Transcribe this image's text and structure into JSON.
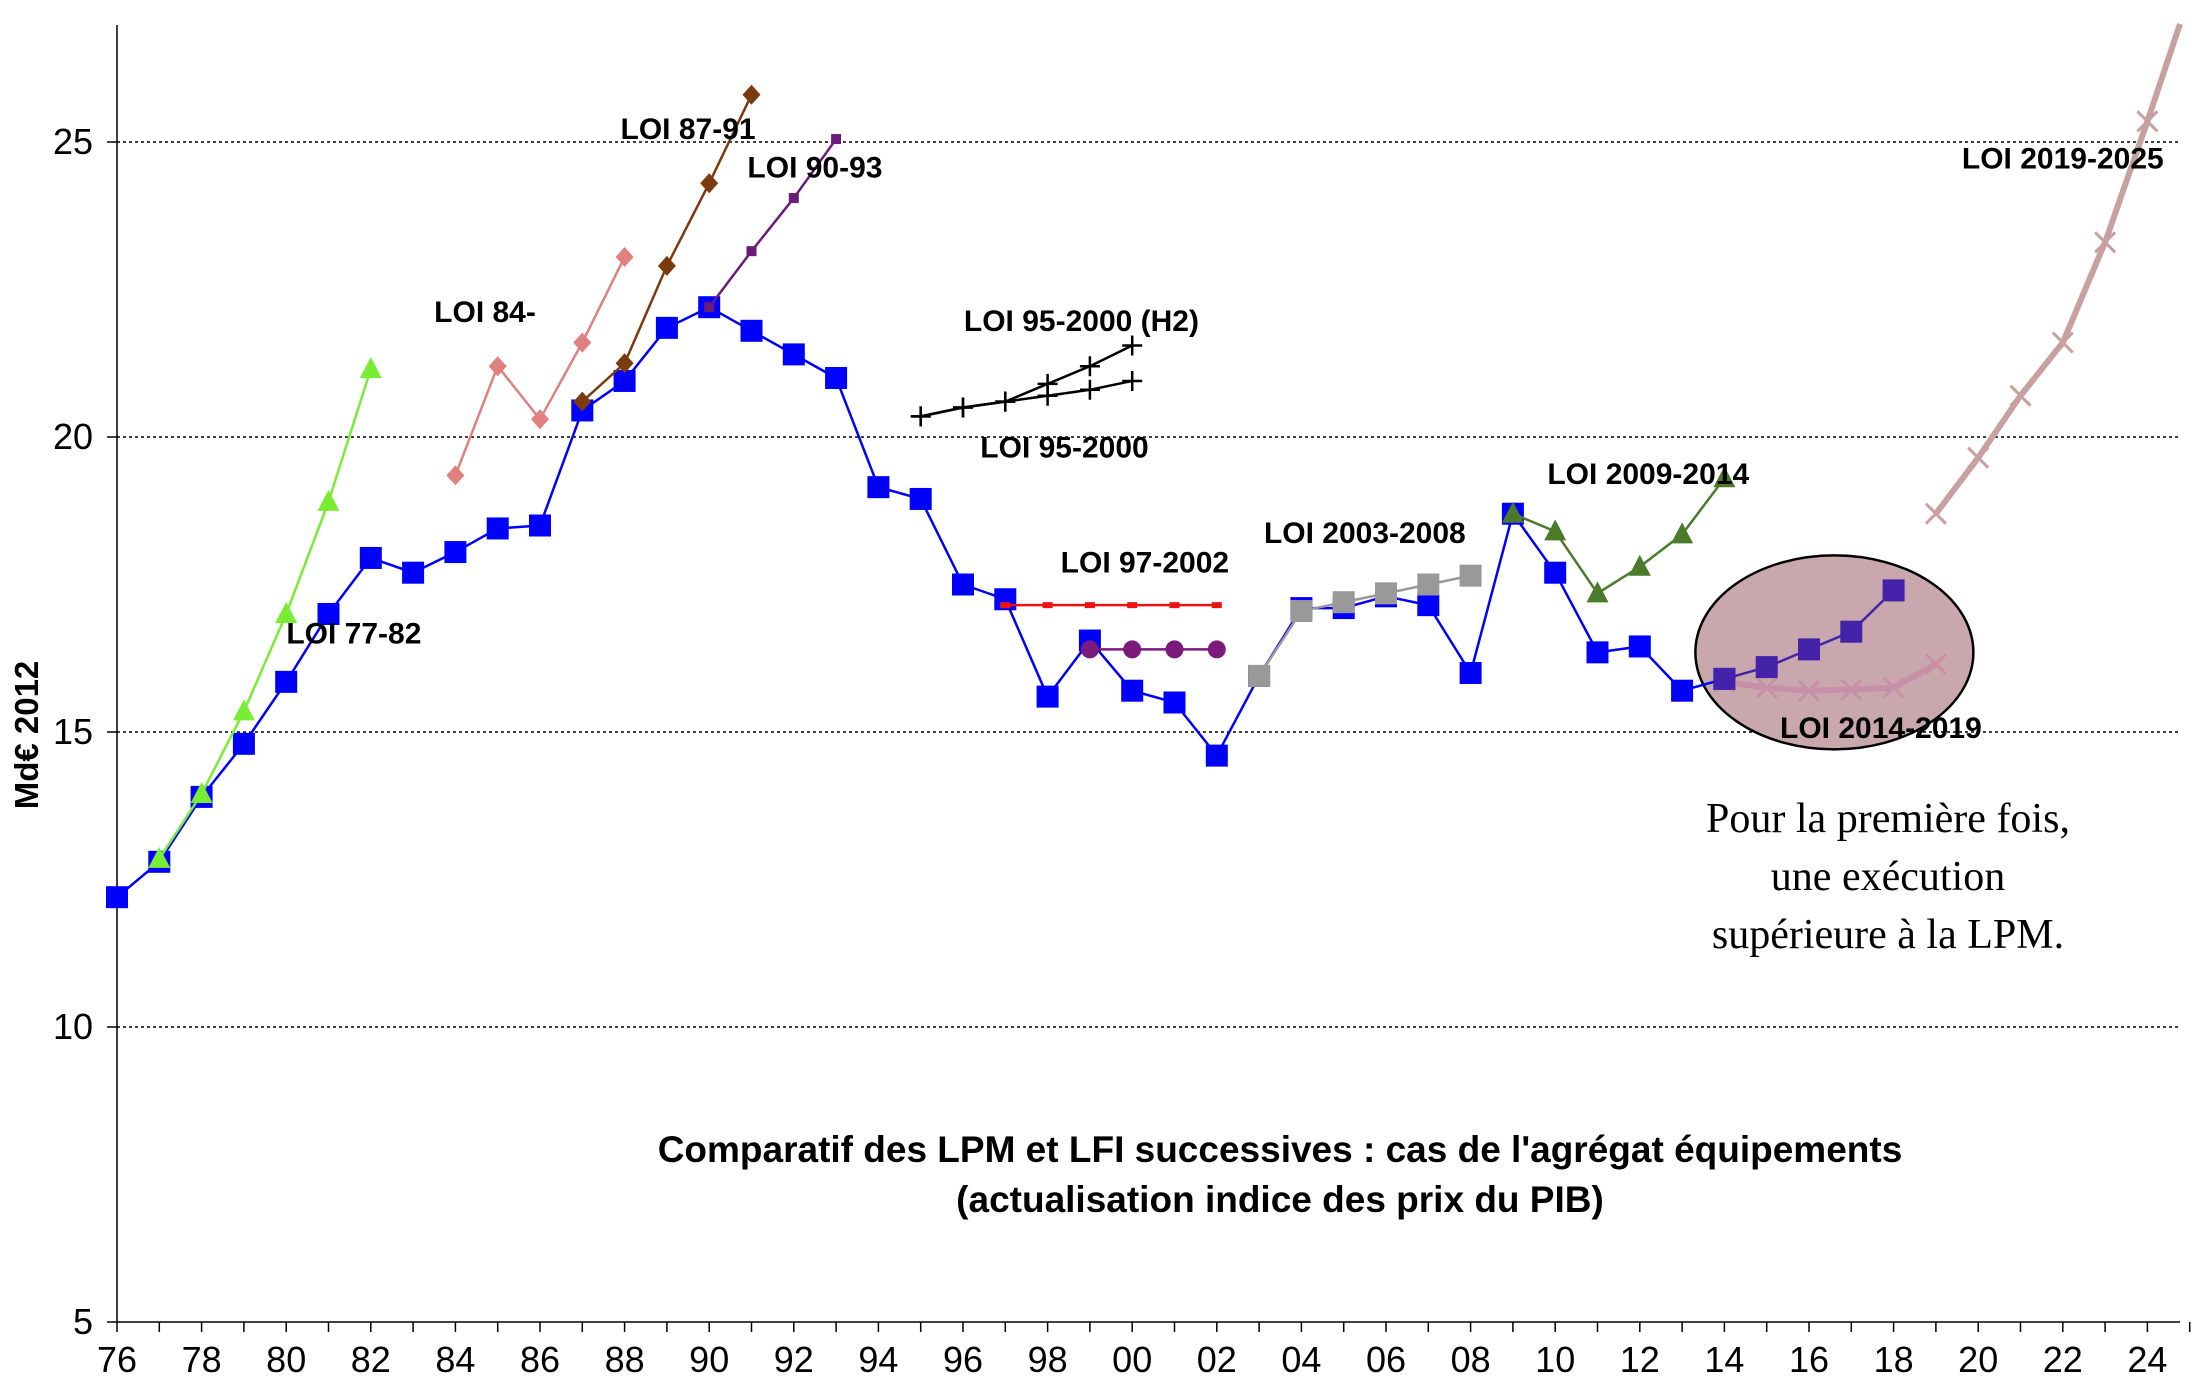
{
  "chart_data": {
    "type": "line",
    "title": "Comparatif des LPM et LFI successives : cas de l'agrégat équipements",
    "subtitle": "(actualisation indice des prix du PIB)",
    "ylabel": "Md€ 2012",
    "xlabel": "",
    "ylim": [
      5,
      27
    ],
    "xlim": [
      1976,
      2025
    ],
    "y_ticks": [
      5,
      10,
      15,
      20,
      25
    ],
    "x_tick_labels": [
      "76",
      "78",
      "80",
      "82",
      "84",
      "86",
      "88",
      "90",
      "92",
      "94",
      "96",
      "98",
      "00",
      "02",
      "04",
      "06",
      "08",
      "10",
      "12",
      "14",
      "16",
      "18",
      "20",
      "22",
      "24"
    ],
    "grid": "horizontal dotted",
    "annotation": {
      "lines": [
        "Pour la première fois,",
        "une exécution",
        "supérieure à la LPM."
      ]
    },
    "series": [
      {
        "name": "",
        "color": "#0000ff",
        "marker": "square",
        "points": [
          [
            1976,
            12.2
          ],
          [
            1977,
            12.8
          ],
          [
            1978,
            13.9
          ],
          [
            1979,
            14.8
          ],
          [
            1980,
            15.85
          ],
          [
            1981,
            17.0
          ],
          [
            1982,
            17.95
          ],
          [
            1983,
            17.7
          ],
          [
            1984,
            18.05
          ],
          [
            1985,
            18.45
          ],
          [
            1986,
            18.5
          ],
          [
            1987,
            20.45
          ],
          [
            1988,
            20.95
          ],
          [
            1989,
            21.85
          ],
          [
            1990,
            22.2
          ],
          [
            1991,
            21.8
          ],
          [
            1992,
            21.4
          ],
          [
            1993,
            21.0
          ],
          [
            1994,
            19.15
          ],
          [
            1995,
            18.95
          ],
          [
            1996,
            17.5
          ],
          [
            1997,
            17.25
          ],
          [
            1998,
            15.6
          ],
          [
            1999,
            16.55
          ],
          [
            2000,
            15.7
          ],
          [
            2001,
            15.5
          ],
          [
            2002,
            14.6
          ],
          [
            2003,
            15.95
          ],
          [
            2004,
            17.1
          ],
          [
            2005,
            17.1
          ],
          [
            2006,
            17.3
          ],
          [
            2007,
            17.15
          ],
          [
            2008,
            16.0
          ],
          [
            2009,
            18.7
          ],
          [
            2010,
            17.7
          ],
          [
            2011,
            16.35
          ],
          [
            2012,
            16.45
          ],
          [
            2013,
            15.7
          ],
          [
            2014,
            15.9
          ]
        ]
      },
      {
        "name": "LOI 77-82",
        "color": "#77ee33",
        "marker": "triangle",
        "points": [
          [
            1977,
            12.85
          ],
          [
            1978,
            13.95
          ],
          [
            1979,
            15.35
          ],
          [
            1980,
            17.0
          ],
          [
            1981,
            18.9
          ],
          [
            1982,
            21.15
          ]
        ]
      },
      {
        "name": "LOI 84-",
        "color": "#e08080",
        "marker": "diamond",
        "points": [
          [
            1984,
            19.35
          ],
          [
            1985,
            21.2
          ],
          [
            1986,
            20.3
          ],
          [
            1987,
            21.6
          ],
          [
            1988,
            23.05
          ]
        ]
      },
      {
        "name": "LOI 87-91",
        "color": "#7a3b0f",
        "marker": "diamond",
        "points": [
          [
            1987,
            20.6
          ],
          [
            1988,
            21.25
          ],
          [
            1989,
            22.9
          ],
          [
            1990,
            24.3
          ],
          [
            1991,
            25.8
          ]
        ]
      },
      {
        "name": "LOI 90-93",
        "color": "#6a1b7a",
        "marker": "smallsquare",
        "points": [
          [
            1990,
            22.2
          ],
          [
            1991,
            23.15
          ],
          [
            1992,
            24.05
          ],
          [
            1993,
            25.05
          ]
        ]
      },
      {
        "name": "LOI 95-2000 (H2)",
        "color": "#000000",
        "marker": "plus",
        "points": [
          [
            1995,
            20.35
          ],
          [
            1996,
            20.5
          ],
          [
            1997,
            20.6
          ],
          [
            1998,
            20.9
          ],
          [
            1999,
            21.2
          ],
          [
            2000,
            21.55
          ]
        ]
      },
      {
        "name": "LOI 95-2000",
        "color": "#000000",
        "marker": "plus",
        "points": [
          [
            1995,
            20.35
          ],
          [
            1996,
            20.5
          ],
          [
            1997,
            20.6
          ],
          [
            1998,
            20.7
          ],
          [
            1999,
            20.8
          ],
          [
            2000,
            20.95
          ]
        ]
      },
      {
        "name": "LOI 97-2002",
        "color": "#ee1111",
        "marker": "dash",
        "points": [
          [
            1997,
            17.15
          ],
          [
            1998,
            17.15
          ],
          [
            1999,
            17.15
          ],
          [
            2000,
            17.15
          ],
          [
            2001,
            17.15
          ],
          [
            2002,
            17.15
          ]
        ]
      },
      {
        "name": "",
        "color": "#7a1a7a",
        "marker": "circle",
        "points": [
          [
            1999,
            16.4
          ],
          [
            2000,
            16.4
          ],
          [
            2001,
            16.4
          ],
          [
            2002,
            16.4
          ]
        ]
      },
      {
        "name": "LOI 2003-2008",
        "color": "#999999",
        "marker": "square",
        "points": [
          [
            2003,
            15.95
          ],
          [
            2004,
            17.05
          ],
          [
            2005,
            17.2
          ],
          [
            2006,
            17.35
          ],
          [
            2007,
            17.5
          ],
          [
            2008,
            17.65
          ]
        ]
      },
      {
        "name": "LOI 2009-2014",
        "color": "#4a7a2a",
        "marker": "triangle",
        "points": [
          [
            2009,
            18.7
          ],
          [
            2010,
            18.4
          ],
          [
            2011,
            17.35
          ],
          [
            2012,
            17.8
          ],
          [
            2013,
            18.35
          ],
          [
            2014,
            19.3
          ]
        ]
      },
      {
        "name": "LOI 2014-2019",
        "color": "#c890a8",
        "marker": "x",
        "points": [
          [
            2014,
            15.85
          ],
          [
            2015,
            15.75
          ],
          [
            2016,
            15.7
          ],
          [
            2017,
            15.72
          ],
          [
            2018,
            15.75
          ],
          [
            2019,
            16.15
          ]
        ]
      },
      {
        "name": "",
        "color": "#4422aa",
        "marker": "square",
        "points": [
          [
            2014,
            15.9
          ],
          [
            2015,
            16.1
          ],
          [
            2016,
            16.4
          ],
          [
            2017,
            16.7
          ],
          [
            2018,
            17.4
          ]
        ]
      },
      {
        "name": "LOI 2019-2025",
        "color": "#c8a0a0",
        "marker": "x",
        "points": [
          [
            2019,
            18.7
          ],
          [
            2020,
            19.65
          ],
          [
            2021,
            20.7
          ],
          [
            2022,
            21.6
          ],
          [
            2023,
            23.3
          ],
          [
            2024,
            25.35
          ],
          [
            2025,
            27.0
          ]
        ]
      }
    ],
    "series_labels": [
      {
        "text": "LOI 77-82",
        "x": 1981.6,
        "y": 16.5
      },
      {
        "text": "LOI 84-",
        "x": 1984.7,
        "y": 21.95
      },
      {
        "text": "LOI 87-91",
        "x": 1989.5,
        "y": 25.05
      },
      {
        "text": "LOI 90-93",
        "x": 1992.5,
        "y": 24.4
      },
      {
        "text": "LOI 95-2000 (H2)",
        "x": 1998.8,
        "y": 21.8
      },
      {
        "text": "LOI 95-2000",
        "x": 1998.4,
        "y": 19.65
      },
      {
        "text": "LOI 97-2002",
        "x": 2000.3,
        "y": 17.7
      },
      {
        "text": "LOI 2003-2008",
        "x": 2005.5,
        "y": 18.2
      },
      {
        "text": "LOI 2009-2014",
        "x": 2012.2,
        "y": 19.2
      },
      {
        "text": "LOI 2014-2019",
        "x": 2017.7,
        "y": 14.9
      },
      {
        "text": "LOI 2019-2025",
        "x": 2022.0,
        "y": 24.55
      }
    ]
  }
}
